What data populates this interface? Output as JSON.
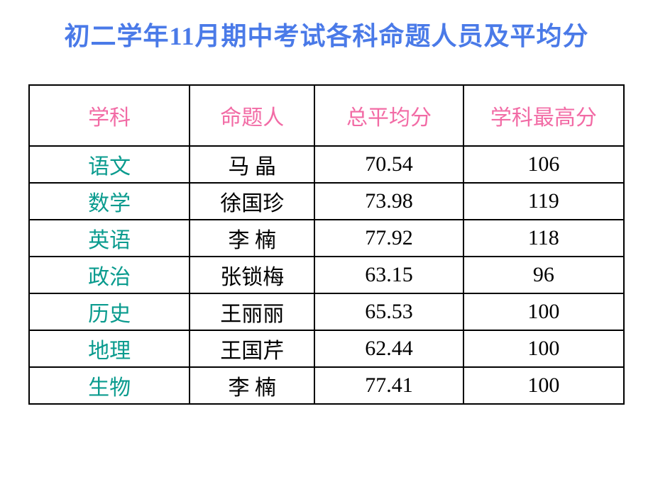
{
  "title": {
    "text": "初二学年11月期中考试各科命题人员及平均分",
    "color": "#4a7ae8",
    "fontsize": 36,
    "font_family": "\"KaiTi\", \"楷体\", serif",
    "font_weight": "bold"
  },
  "table": {
    "header_color": "#f26ba5",
    "header_fontsize": 30,
    "subject_color": "#0a9b8e",
    "cell_color": "#000000",
    "cell_fontsize": 30,
    "border_color": "#000000",
    "columns": [
      "学科",
      "命题人",
      "总平均分",
      "学科最高分"
    ],
    "rows": [
      {
        "subject": "语文",
        "person": "马 晶",
        "avg": "70.54",
        "max": "106"
      },
      {
        "subject": "数学",
        "person": "徐国珍",
        "avg": "73.98",
        "max": "119"
      },
      {
        "subject": "英语",
        "person": "李 楠",
        "avg": "77.92",
        "max": "118"
      },
      {
        "subject": "政治",
        "person": "张锁梅",
        "avg": "63.15",
        "max": "96"
      },
      {
        "subject": "历史",
        "person": "王丽丽",
        "avg": "65.53",
        "max": "100"
      },
      {
        "subject": "地理",
        "person": "王国芹",
        "avg": "62.44",
        "max": "100"
      },
      {
        "subject": "生物",
        "person": "李 楠",
        "avg": "77.41",
        "max": "100"
      }
    ]
  }
}
